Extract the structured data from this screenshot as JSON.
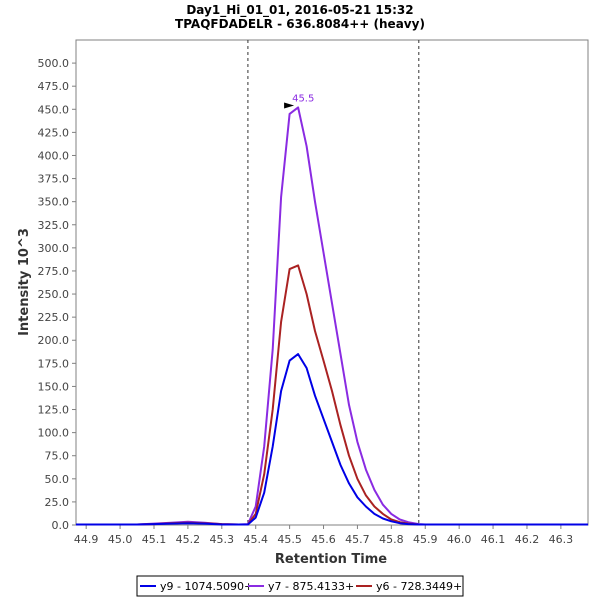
{
  "chart_data": {
    "type": "line",
    "title": "Day1_Hi_01_01, 2016-05-21 15:32",
    "subtitle": "TPAQFDADELR - 636.8084++ (heavy)",
    "xlabel": "Retention Time",
    "ylabel": "Intensity 10^3",
    "xlim": [
      44.87,
      46.38
    ],
    "ylim": [
      0,
      525
    ],
    "x_ticks": [
      "44.9",
      "45.0",
      "45.1",
      "45.2",
      "45.3",
      "45.4",
      "45.5",
      "45.6",
      "45.7",
      "45.8",
      "45.9",
      "46.0",
      "46.1",
      "46.2",
      "46.3"
    ],
    "y_ticks": [
      "0.0",
      "25.0",
      "50.0",
      "75.0",
      "100.0",
      "125.0",
      "150.0",
      "175.0",
      "200.0",
      "225.0",
      "250.0",
      "275.0",
      "300.0",
      "325.0",
      "350.0",
      "375.0",
      "400.0",
      "425.0",
      "450.0",
      "475.0",
      "500.0"
    ],
    "boundaries": [
      45.377,
      45.881
    ],
    "peak_annotation": {
      "x": 45.525,
      "y": 452,
      "label": "45.5",
      "color": "#8a2be2"
    },
    "series": [
      {
        "name": "y9 - 1074.5090+",
        "color": "#0000e6",
        "x": [
          44.87,
          44.9,
          44.95,
          45.0,
          45.05,
          45.1,
          45.15,
          45.2,
          45.25,
          45.3,
          45.35,
          45.377,
          45.4,
          45.425,
          45.45,
          45.475,
          45.5,
          45.525,
          45.55,
          45.575,
          45.6,
          45.625,
          45.65,
          45.675,
          45.7,
          45.725,
          45.75,
          45.775,
          45.8,
          45.825,
          45.85,
          45.881,
          45.9,
          45.95,
          46.0,
          46.05,
          46.1,
          46.15,
          46.2,
          46.25,
          46.3,
          46.38
        ],
        "y": [
          0.5,
          0.5,
          0.5,
          0.5,
          0.5,
          1.0,
          1.5,
          2.0,
          1.5,
          0.5,
          0.5,
          0.5,
          8,
          35,
          85,
          145,
          178,
          185,
          170,
          140,
          115,
          90,
          65,
          45,
          30,
          20,
          12,
          7,
          4,
          2,
          1,
          0.5,
          0.5,
          0.5,
          0.5,
          0.5,
          0.5,
          0.5,
          0.5,
          0.5,
          0.5,
          0.5
        ]
      },
      {
        "name": "y7 - 875.4133+",
        "color": "#8a2be2",
        "x": [
          44.87,
          44.9,
          44.95,
          45.0,
          45.05,
          45.1,
          45.15,
          45.2,
          45.25,
          45.3,
          45.35,
          45.377,
          45.4,
          45.425,
          45.45,
          45.475,
          45.5,
          45.525,
          45.55,
          45.575,
          45.6,
          45.625,
          45.65,
          45.675,
          45.7,
          45.725,
          45.75,
          45.775,
          45.8,
          45.825,
          45.85,
          45.881,
          45.9,
          45.95,
          46.0,
          46.05,
          46.1,
          46.15,
          46.2,
          46.25,
          46.3,
          46.38
        ],
        "y": [
          0.5,
          0.5,
          0.5,
          0.5,
          0.5,
          1.5,
          2.5,
          3.5,
          2.5,
          1.0,
          0.5,
          1,
          20,
          85,
          190,
          355,
          445,
          452,
          410,
          350,
          295,
          240,
          185,
          130,
          90,
          60,
          38,
          22,
          12,
          6,
          3,
          1,
          0.5,
          0.5,
          0.5,
          0.5,
          0.5,
          0.5,
          0.5,
          0.5,
          0.5,
          0.5
        ]
      },
      {
        "name": "y6 - 728.3449+",
        "color": "#aa2222",
        "x": [
          44.87,
          44.9,
          44.95,
          45.0,
          45.05,
          45.1,
          45.15,
          45.2,
          45.25,
          45.3,
          45.35,
          45.377,
          45.4,
          45.425,
          45.45,
          45.475,
          45.5,
          45.525,
          45.55,
          45.575,
          45.6,
          45.625,
          45.65,
          45.675,
          45.7,
          45.725,
          45.75,
          45.775,
          45.8,
          45.825,
          45.85,
          45.881,
          45.9,
          45.95,
          46.0,
          46.05,
          46.1,
          46.15,
          46.2,
          46.25,
          46.3,
          46.38
        ],
        "y": [
          0.5,
          0.5,
          0.5,
          0.5,
          0.5,
          1.0,
          2.0,
          2.5,
          2.0,
          1.0,
          0.5,
          0.5,
          12,
          55,
          125,
          220,
          277,
          281,
          250,
          210,
          178,
          145,
          108,
          75,
          50,
          32,
          20,
          12,
          6,
          3,
          1.5,
          0.5,
          0.5,
          0.5,
          0.5,
          0.5,
          0.5,
          0.5,
          0.5,
          0.5,
          0.5,
          0.5
        ]
      }
    ],
    "legend": [
      "y9 - 1074.5090+",
      "y7 - 875.4133+",
      "y6 - 728.3449+"
    ]
  }
}
